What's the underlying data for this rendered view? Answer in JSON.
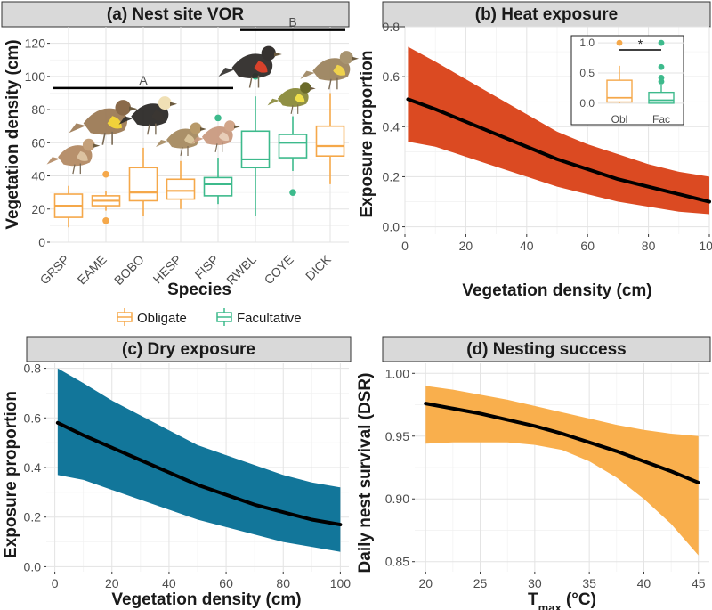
{
  "colors": {
    "obligate": "#f5a84a",
    "facultative": "#3dba8c",
    "heat_ribbon": "#db4a22",
    "dry_ribbon": "#12769a",
    "nest_ribbon": "#f9af4d",
    "strip_fill": "#d9d9d9",
    "line": "#000000"
  },
  "chart_data": [
    {
      "id": "a",
      "type": "box",
      "title": "(a) Nest site VOR",
      "xlabel": "Species",
      "ylabel": "Vegetation density (cm)",
      "ylim": [
        0,
        130
      ],
      "yticks": [
        0,
        20,
        40,
        60,
        80,
        100,
        120
      ],
      "categories": [
        "GRSP",
        "EAME",
        "BOBO",
        "HESP",
        "FISP",
        "RWBL",
        "COYE",
        "DICK"
      ],
      "groups": [
        "Obligate",
        "Obligate",
        "Obligate",
        "Obligate",
        "Facultative",
        "Facultative",
        "Facultative",
        "Obligate"
      ],
      "boxes": [
        {
          "min": 9,
          "q1": 15,
          "median": 22,
          "q3": 29,
          "max": 34,
          "outliers": []
        },
        {
          "min": 19,
          "q1": 22,
          "median": 25,
          "q3": 28,
          "max": 31,
          "outliers": [
            13,
            41
          ]
        },
        {
          "min": 16,
          "q1": 25,
          "median": 30,
          "q3": 45,
          "max": 57,
          "outliers": []
        },
        {
          "min": 20,
          "q1": 26,
          "median": 31,
          "q3": 38,
          "max": 49,
          "outliers": []
        },
        {
          "min": 23,
          "q1": 28,
          "median": 35,
          "q3": 39,
          "max": 51,
          "outliers": [
            75
          ]
        },
        {
          "min": 16,
          "q1": 45,
          "median": 50,
          "q3": 67,
          "max": 88,
          "outliers": [
            100
          ]
        },
        {
          "min": 43,
          "q1": 51,
          "median": 60,
          "q3": 65,
          "max": 76,
          "outliers": [
            30
          ]
        },
        {
          "min": 35,
          "q1": 52,
          "median": 58,
          "q3": 70,
          "max": 90,
          "outliers": []
        }
      ],
      "group_bars": [
        {
          "label": "A",
          "from": "GRSP",
          "to": "FISP",
          "y": 93
        },
        {
          "label": "B",
          "from": "RWBL",
          "to": "DICK",
          "y": 128
        }
      ],
      "legend": [
        "Obligate",
        "Facultative"
      ]
    },
    {
      "id": "b",
      "type": "line",
      "title": "(b) Heat exposure",
      "xlabel": "Vegetation density (cm)",
      "ylabel": "Exposure proportion",
      "xlim": [
        0,
        100
      ],
      "ylim": [
        -0.03,
        0.8
      ],
      "xticks": [
        0,
        20,
        40,
        60,
        80,
        100
      ],
      "yticks": [
        0.0,
        0.2,
        0.4,
        0.6,
        0.8
      ],
      "x": [
        1,
        10,
        20,
        30,
        40,
        50,
        60,
        70,
        80,
        90,
        100
      ],
      "fit": [
        0.51,
        0.47,
        0.42,
        0.37,
        0.32,
        0.27,
        0.23,
        0.19,
        0.16,
        0.13,
        0.1
      ],
      "lower": [
        0.34,
        0.32,
        0.28,
        0.24,
        0.2,
        0.16,
        0.13,
        0.1,
        0.08,
        0.06,
        0.05
      ],
      "upper": [
        0.72,
        0.66,
        0.59,
        0.52,
        0.45,
        0.38,
        0.33,
        0.29,
        0.25,
        0.22,
        0.2
      ],
      "inset": {
        "type": "box",
        "categories": [
          "Obl",
          "Fac"
        ],
        "ylim": [
          -0.12,
          1.12
        ],
        "yticks": [
          "0.0",
          "0.5",
          "1.0"
        ],
        "significance": "*",
        "boxes": [
          {
            "min": 0.0,
            "q1": 0.02,
            "median": 0.09,
            "q3": 0.38,
            "max": 0.62,
            "outliers": [
              1.0
            ]
          },
          {
            "min": 0.0,
            "q1": 0.0,
            "median": 0.05,
            "q3": 0.18,
            "max": 0.3,
            "outliers": [
              0.36,
              0.42,
              0.6,
              1.0
            ]
          }
        ]
      }
    },
    {
      "id": "c",
      "type": "line",
      "title": "(c) Dry exposure",
      "xlabel": "Vegetation density (cm)",
      "ylabel": "Exposure proportion",
      "xlim": [
        -3,
        103
      ],
      "ylim": [
        -0.02,
        0.82
      ],
      "xticks": [
        0,
        20,
        40,
        60,
        80,
        100
      ],
      "yticks": [
        0.0,
        0.2,
        0.4,
        0.6,
        0.8
      ],
      "x": [
        1,
        10,
        20,
        30,
        40,
        50,
        60,
        70,
        80,
        90,
        100
      ],
      "fit": [
        0.58,
        0.53,
        0.48,
        0.43,
        0.38,
        0.33,
        0.29,
        0.25,
        0.22,
        0.19,
        0.17
      ],
      "lower": [
        0.37,
        0.35,
        0.31,
        0.27,
        0.23,
        0.19,
        0.16,
        0.13,
        0.1,
        0.08,
        0.06
      ],
      "upper": [
        0.8,
        0.74,
        0.67,
        0.61,
        0.55,
        0.49,
        0.45,
        0.41,
        0.37,
        0.34,
        0.32
      ]
    },
    {
      "id": "d",
      "type": "line",
      "title": "(d) Nesting success",
      "xlabel": "T",
      "xlabel_sub": "max",
      "xlabel_unit": " (°C)",
      "ylabel": "Daily nest survival (DSR)",
      "xlim": [
        19,
        46
      ],
      "ylim": [
        0.842,
        1.008
      ],
      "xticks": [
        20,
        25,
        30,
        35,
        40,
        45
      ],
      "yticks": [
        0.85,
        0.9,
        0.95,
        1.0
      ],
      "ytick_labels": [
        "0.85",
        "0.90",
        "0.95",
        "1.00"
      ],
      "x": [
        20,
        22.5,
        25,
        27.5,
        30,
        32.5,
        35,
        37.5,
        40,
        42.5,
        45
      ],
      "fit": [
        0.976,
        0.972,
        0.968,
        0.963,
        0.958,
        0.952,
        0.945,
        0.938,
        0.93,
        0.922,
        0.913
      ],
      "lower": [
        0.944,
        0.945,
        0.945,
        0.945,
        0.943,
        0.939,
        0.93,
        0.917,
        0.9,
        0.88,
        0.855
      ],
      "upper": [
        0.99,
        0.987,
        0.983,
        0.979,
        0.974,
        0.969,
        0.964,
        0.959,
        0.955,
        0.952,
        0.95
      ]
    }
  ]
}
